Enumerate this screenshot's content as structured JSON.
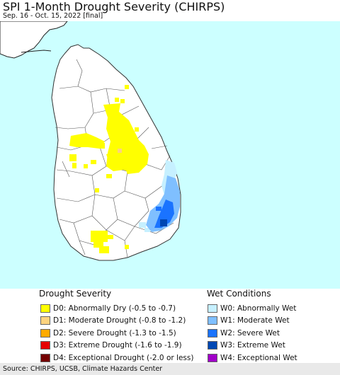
{
  "title": "SPI 1-Month Drought Severity (CHIRPS)",
  "subtitle": "Sep. 16 - Oct. 15, 2022 [final]",
  "map": {
    "region": "Sri Lanka",
    "background_color": "#ccffff",
    "land_color": "#ffffff",
    "border_color": "#444444"
  },
  "legend": {
    "drought": {
      "title": "Drought Severity",
      "items": [
        {
          "label": "D0: Abnormally Dry (-0.5 to -0.7)",
          "color": "#ffff00"
        },
        {
          "label": "D1: Moderate Drought (-0.8 to -1.2)",
          "color": "#fcd37f"
        },
        {
          "label": "D2: Severe Drought (-1.3 to -1.5)",
          "color": "#ffaa00"
        },
        {
          "label": "D3: Extreme Drought (-1.6 to -1.9)",
          "color": "#e60000"
        },
        {
          "label": "D4: Exceptional Drought (-2.0 or less)",
          "color": "#730000"
        }
      ]
    },
    "wet": {
      "title": "Wet Conditions",
      "items": [
        {
          "label": "W0: Abnormally Wet",
          "color": "#c6f0ff"
        },
        {
          "label": "W1: Moderate Wet",
          "color": "#7fbfff"
        },
        {
          "label": "W2: Severe Wet",
          "color": "#1a73ff"
        },
        {
          "label": "W3: Extreme Wet",
          "color": "#0047b3"
        },
        {
          "label": "W4: Exceptional Wet",
          "color": "#a000c8"
        }
      ]
    }
  },
  "source": "Source: CHIRPS, UCSB, Climate Hazards Center"
}
